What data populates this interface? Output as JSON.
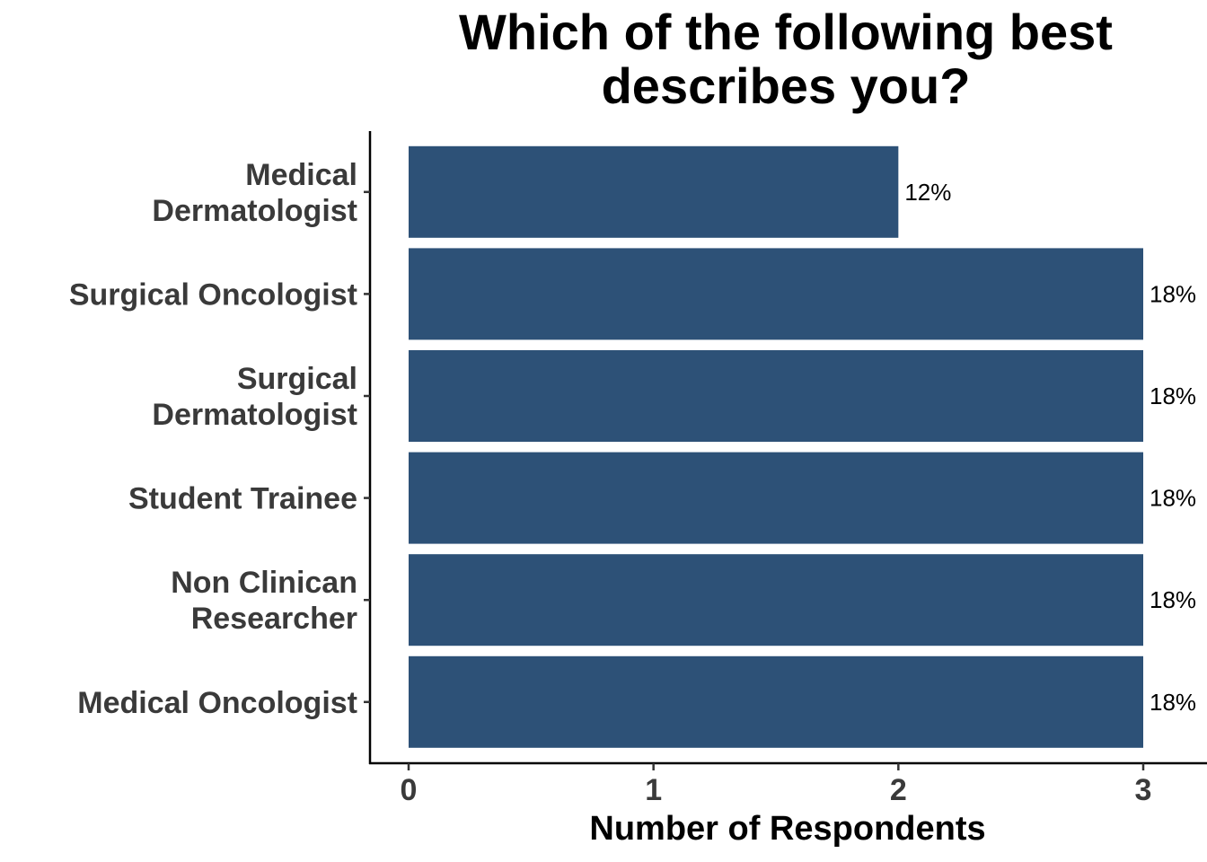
{
  "chart_data": {
    "type": "bar",
    "orientation": "horizontal",
    "title_lines": [
      "Which of the following best",
      "describes you?"
    ],
    "xlabel": "Number of Respondents",
    "ylabel": "",
    "categories": [
      [
        "Medical",
        "Dermatologist"
      ],
      [
        "Surgical Oncologist"
      ],
      [
        "Surgical",
        "Dermatologist"
      ],
      [
        "Student Trainee"
      ],
      [
        "Non Clinican",
        "Researcher"
      ],
      [
        "Medical Oncologist"
      ]
    ],
    "values": [
      2,
      3,
      3,
      3,
      3,
      3
    ],
    "data_labels": [
      "12%",
      "18%",
      "18%",
      "18%",
      "18%",
      "18%"
    ],
    "xlim": [
      0,
      3
    ],
    "xticks": [
      "0",
      "1",
      "2",
      "3"
    ],
    "bar_color": "#2d5177",
    "grid": false,
    "legend": "none"
  }
}
